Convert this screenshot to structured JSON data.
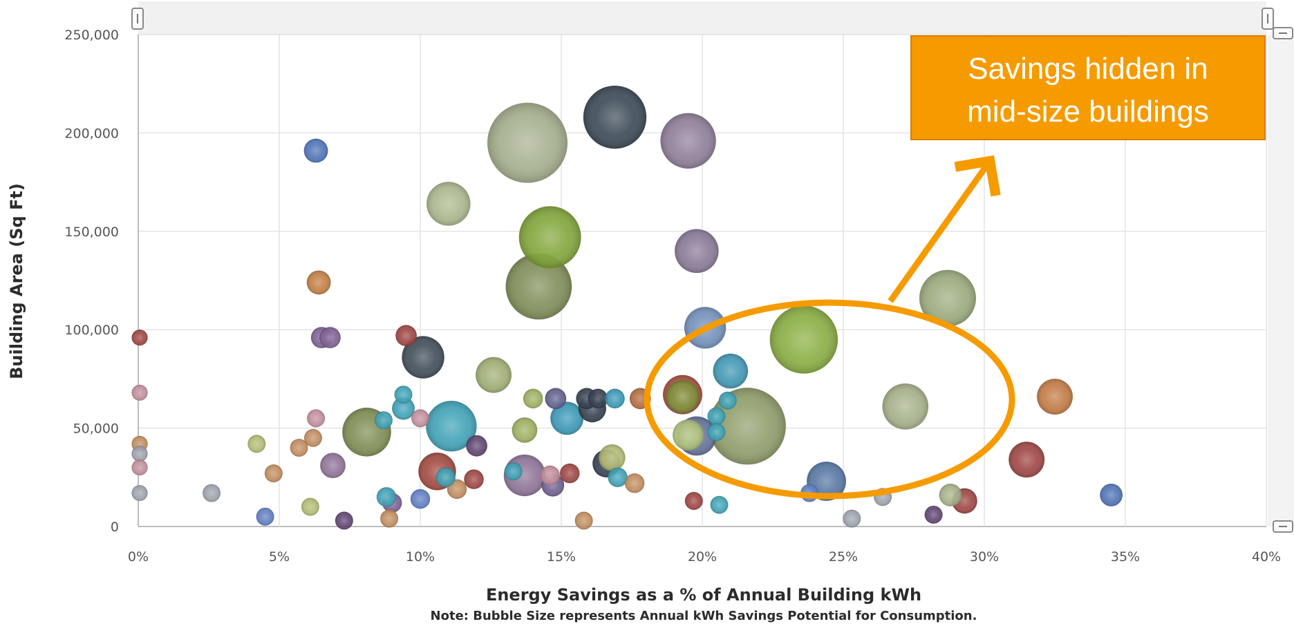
{
  "chart_data": {
    "type": "scatter",
    "title": "",
    "xlabel": "Energy Savings as a % of Annual Building kWh",
    "ylabel": "Building Area (Sq Ft)",
    "note": "Note: Bubble Size represents Annual kWh Savings Potential for Consumption.",
    "xlim": [
      0,
      40
    ],
    "ylim": [
      0,
      250000
    ],
    "x_ticks": [
      0,
      5,
      10,
      15,
      20,
      25,
      30,
      35,
      40
    ],
    "x_tick_labels": [
      "0%",
      "5%",
      "10%",
      "15%",
      "20%",
      "25%",
      "30%",
      "35%",
      "40%"
    ],
    "y_ticks": [
      0,
      50000,
      100000,
      150000,
      200000,
      250000
    ],
    "y_tick_labels": [
      "0",
      "50,000",
      "100,000",
      "150,000",
      "200,000",
      "250,000"
    ],
    "grid": true,
    "annotation": {
      "text_lines": [
        "Savings hidden in",
        "mid-size buildings"
      ],
      "background_color": "#f59b00",
      "highlight_color": "#f59b00"
    },
    "bubbles": [
      {
        "x": 13.8,
        "y": 195000,
        "size": 1.0,
        "color": "#a3ac8a"
      },
      {
        "x": 16.9,
        "y": 208000,
        "size": 0.62,
        "color": "#34424f"
      },
      {
        "x": 19.5,
        "y": 196000,
        "size": 0.48,
        "color": "#8b7a96"
      },
      {
        "x": 21.6,
        "y": 51000,
        "size": 0.92,
        "color": "#8c9a66"
      },
      {
        "x": 23.6,
        "y": 95000,
        "size": 0.72,
        "color": "#86ab3c"
      },
      {
        "x": 14.6,
        "y": 147000,
        "size": 0.6,
        "color": "#7ea334"
      },
      {
        "x": 14.2,
        "y": 122000,
        "size": 0.68,
        "color": "#7b8a52"
      },
      {
        "x": 28.7,
        "y": 116000,
        "size": 0.5,
        "color": "#98a87a"
      },
      {
        "x": 11.0,
        "y": 164000,
        "size": 0.3,
        "color": "#a8b58a"
      },
      {
        "x": 19.8,
        "y": 140000,
        "size": 0.3,
        "color": "#867594"
      },
      {
        "x": 20.1,
        "y": 101000,
        "size": 0.27,
        "color": "#6f8cb8"
      },
      {
        "x": 10.1,
        "y": 86000,
        "size": 0.28,
        "color": "#3a4654"
      },
      {
        "x": 11.1,
        "y": 51000,
        "size": 0.4,
        "color": "#3aa0b4"
      },
      {
        "x": 8.1,
        "y": 48000,
        "size": 0.37,
        "color": "#7b8a4e"
      },
      {
        "x": 27.2,
        "y": 61000,
        "size": 0.33,
        "color": "#a3ae85"
      },
      {
        "x": 12.6,
        "y": 77000,
        "size": 0.2,
        "color": "#9bab70"
      },
      {
        "x": 19.3,
        "y": 67000,
        "size": 0.24,
        "color": "#a44a3a"
      },
      {
        "x": 19.3,
        "y": 66000,
        "size": 0.17,
        "color": "#7e8d36"
      },
      {
        "x": 19.8,
        "y": 46000,
        "size": 0.24,
        "color": "#5d6b96"
      },
      {
        "x": 19.5,
        "y": 46500,
        "size": 0.15,
        "color": "#b0c27a"
      },
      {
        "x": 21.0,
        "y": 79000,
        "size": 0.19,
        "color": "#3b94b1"
      },
      {
        "x": 15.2,
        "y": 55000,
        "size": 0.17,
        "color": "#3595b4"
      },
      {
        "x": 13.7,
        "y": 26000,
        "size": 0.27,
        "color": "#8a6f94"
      },
      {
        "x": 10.6,
        "y": 28000,
        "size": 0.22,
        "color": "#a0423a"
      },
      {
        "x": 24.4,
        "y": 23000,
        "size": 0.24,
        "color": "#5172a0"
      },
      {
        "x": 31.5,
        "y": 34000,
        "size": 0.2,
        "color": "#9a3f3d"
      },
      {
        "x": 32.5,
        "y": 66000,
        "size": 0.2,
        "color": "#c0763e"
      },
      {
        "x": 16.1,
        "y": 60000,
        "size": 0.12,
        "color": "#2f3a4a"
      },
      {
        "x": 16.6,
        "y": 32000,
        "size": 0.12,
        "color": "#2f3a4a"
      },
      {
        "x": 16.8,
        "y": 35000,
        "size": 0.11,
        "color": "#b0b870"
      },
      {
        "x": 13.7,
        "y": 49000,
        "size": 0.1,
        "color": "#9aae5c"
      },
      {
        "x": 9.4,
        "y": 60000,
        "size": 0.08,
        "color": "#3aa0b4"
      },
      {
        "x": 6.3,
        "y": 191000,
        "size": 0.09,
        "color": "#4a6fb5"
      },
      {
        "x": 6.4,
        "y": 124000,
        "size": 0.09,
        "color": "#c07a3e"
      },
      {
        "x": 6.5,
        "y": 96000,
        "size": 0.07,
        "color": "#7b5b8f"
      },
      {
        "x": 6.8,
        "y": 96000,
        "size": 0.07,
        "color": "#7b5b8f"
      },
      {
        "x": 9.5,
        "y": 97000,
        "size": 0.07,
        "color": "#9a3f3d"
      },
      {
        "x": 6.9,
        "y": 31000,
        "size": 0.1,
        "color": "#8a6f94"
      },
      {
        "x": 12.0,
        "y": 41000,
        "size": 0.07,
        "color": "#5b3f6d"
      },
      {
        "x": 14.8,
        "y": 65000,
        "size": 0.07,
        "color": "#5b5b8a"
      },
      {
        "x": 15.9,
        "y": 65000,
        "size": 0.07,
        "color": "#2f3a4a"
      },
      {
        "x": 16.3,
        "y": 65000,
        "size": 0.06,
        "color": "#2f3a4a"
      },
      {
        "x": 16.9,
        "y": 65000,
        "size": 0.06,
        "color": "#3595b4"
      },
      {
        "x": 17.8,
        "y": 65000,
        "size": 0.07,
        "color": "#b0683a"
      },
      {
        "x": 14.0,
        "y": 65000,
        "size": 0.06,
        "color": "#9aae5c"
      },
      {
        "x": 14.7,
        "y": 21000,
        "size": 0.08,
        "color": "#6a5a8a"
      },
      {
        "x": 14.6,
        "y": 26000,
        "size": 0.06,
        "color": "#c08a9a"
      },
      {
        "x": 15.3,
        "y": 27000,
        "size": 0.06,
        "color": "#9a3f3d"
      },
      {
        "x": 17.0,
        "y": 25000,
        "size": 0.06,
        "color": "#3aa0b4"
      },
      {
        "x": 17.6,
        "y": 22000,
        "size": 0.06,
        "color": "#c08a5a"
      },
      {
        "x": 11.9,
        "y": 24000,
        "size": 0.06,
        "color": "#9a3f3d"
      },
      {
        "x": 11.3,
        "y": 19000,
        "size": 0.06,
        "color": "#c08a5a"
      },
      {
        "x": 10.9,
        "y": 25000,
        "size": 0.06,
        "color": "#3aa0b4"
      },
      {
        "x": 10.0,
        "y": 14000,
        "size": 0.06,
        "color": "#5b7bc0"
      },
      {
        "x": 9.0,
        "y": 12000,
        "size": 0.06,
        "color": "#7b5b8f"
      },
      {
        "x": 8.8,
        "y": 15000,
        "size": 0.06,
        "color": "#3aa0b4"
      },
      {
        "x": 8.9,
        "y": 4000,
        "size": 0.05,
        "color": "#c08a5a"
      },
      {
        "x": 7.3,
        "y": 3000,
        "size": 0.05,
        "color": "#5b3f6d"
      },
      {
        "x": 6.2,
        "y": 45000,
        "size": 0.05,
        "color": "#c08a5a"
      },
      {
        "x": 6.3,
        "y": 55000,
        "size": 0.05,
        "color": "#c08a9a"
      },
      {
        "x": 5.7,
        "y": 40000,
        "size": 0.05,
        "color": "#c08a5a"
      },
      {
        "x": 4.8,
        "y": 27000,
        "size": 0.05,
        "color": "#c08a5a"
      },
      {
        "x": 4.2,
        "y": 42000,
        "size": 0.05,
        "color": "#b0b870"
      },
      {
        "x": 6.1,
        "y": 10000,
        "size": 0.05,
        "color": "#b0b870"
      },
      {
        "x": 4.5,
        "y": 5000,
        "size": 0.05,
        "color": "#5b7bc0"
      },
      {
        "x": 2.6,
        "y": 17000,
        "size": 0.05,
        "color": "#9aa0aa"
      },
      {
        "x": 8.7,
        "y": 54000,
        "size": 0.05,
        "color": "#3aa0b4"
      },
      {
        "x": 9.4,
        "y": 67000,
        "size": 0.05,
        "color": "#3aa0b4"
      },
      {
        "x": 10.0,
        "y": 55000,
        "size": 0.05,
        "color": "#c08a9a"
      },
      {
        "x": 13.3,
        "y": 28000,
        "size": 0.05,
        "color": "#3aa0b4"
      },
      {
        "x": 15.8,
        "y": 3000,
        "size": 0.05,
        "color": "#c08a5a"
      },
      {
        "x": 19.7,
        "y": 13000,
        "size": 0.05,
        "color": "#9a3f3d"
      },
      {
        "x": 20.6,
        "y": 11000,
        "size": 0.05,
        "color": "#3aa0b4"
      },
      {
        "x": 20.5,
        "y": 56000,
        "size": 0.05,
        "color": "#3aa0b4"
      },
      {
        "x": 20.5,
        "y": 48000,
        "size": 0.05,
        "color": "#3aa0b4"
      },
      {
        "x": 20.9,
        "y": 64000,
        "size": 0.05,
        "color": "#3aa0b4"
      },
      {
        "x": 23.8,
        "y": 17000,
        "size": 0.05,
        "color": "#5b7bc0"
      },
      {
        "x": 25.3,
        "y": 4000,
        "size": 0.05,
        "color": "#9aa0aa"
      },
      {
        "x": 26.4,
        "y": 15000,
        "size": 0.05,
        "color": "#9aa0aa"
      },
      {
        "x": 28.2,
        "y": 6000,
        "size": 0.05,
        "color": "#5b3f6d"
      },
      {
        "x": 28.8,
        "y": 16000,
        "size": 0.08,
        "color": "#a3ae85"
      },
      {
        "x": 29.3,
        "y": 13000,
        "size": 0.1,
        "color": "#9a3f3d"
      },
      {
        "x": 34.5,
        "y": 16000,
        "size": 0.08,
        "color": "#4a6fb5"
      },
      {
        "x": 0.05,
        "y": 96000,
        "size": 0.04,
        "color": "#9a3f3d"
      },
      {
        "x": 0.05,
        "y": 68000,
        "size": 0.04,
        "color": "#c08a9a"
      },
      {
        "x": 0.05,
        "y": 42000,
        "size": 0.04,
        "color": "#c08a5a"
      },
      {
        "x": 0.05,
        "y": 37000,
        "size": 0.04,
        "color": "#9aa0aa"
      },
      {
        "x": 0.05,
        "y": 30000,
        "size": 0.04,
        "color": "#c08a9a"
      },
      {
        "x": 0.05,
        "y": 17000,
        "size": 0.04,
        "color": "#9aa0aa"
      }
    ]
  }
}
